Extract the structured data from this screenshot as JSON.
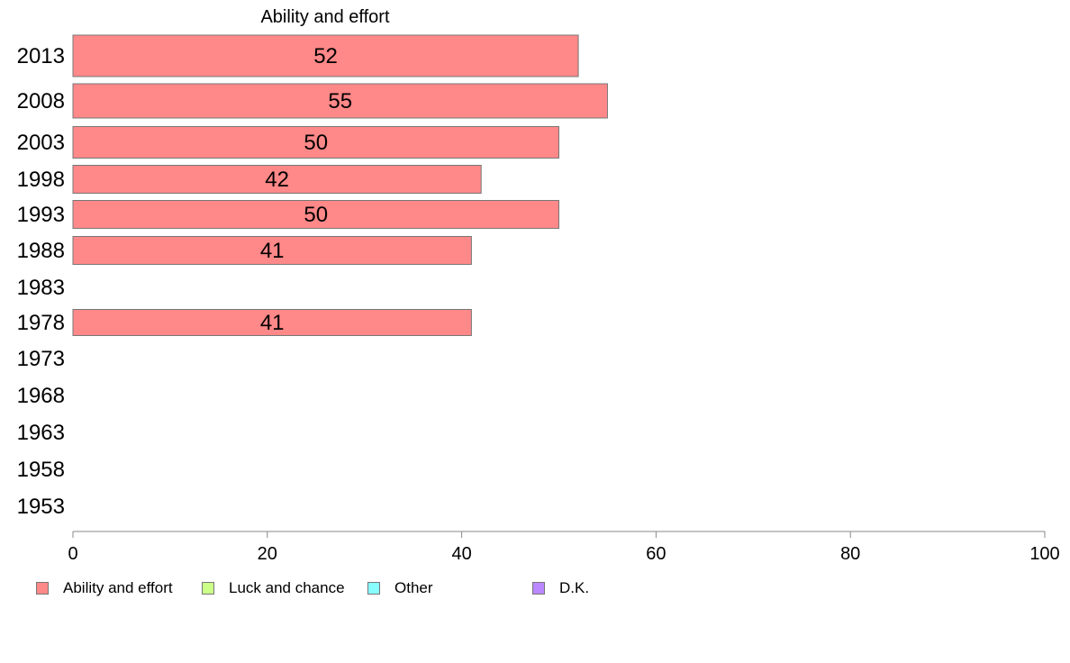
{
  "chart_data": {
    "type": "bar",
    "orientation": "horizontal",
    "title": "Ability and effort",
    "categories": [
      "2013",
      "2008",
      "2003",
      "1998",
      "1993",
      "1988",
      "1983",
      "1978",
      "1973",
      "1968",
      "1963",
      "1958",
      "1953"
    ],
    "series": [
      {
        "name": "Ability and effort",
        "color": "#ff8888",
        "values": [
          52,
          55,
          50,
          42,
          50,
          41,
          null,
          41,
          null,
          null,
          null,
          null,
          null
        ],
        "labels": [
          "52",
          "55",
          "50",
          "42",
          "50",
          "41",
          "",
          "41",
          "",
          "",
          "",
          "",
          ""
        ]
      }
    ],
    "xlim": [
      0,
      100
    ],
    "xticks": [
      "0",
      "20",
      "40",
      "60",
      "80",
      "100"
    ],
    "grid": false,
    "legend": {
      "placement": "bottom-left",
      "entries": [
        {
          "label": "Ability and effort",
          "color": "#ff8888"
        },
        {
          "label": "Luck and chance",
          "color": "#ccff88"
        },
        {
          "label": "Other",
          "color": "#88ffff"
        },
        {
          "label": "D.K.",
          "color": "#bb88ff"
        }
      ]
    }
  }
}
